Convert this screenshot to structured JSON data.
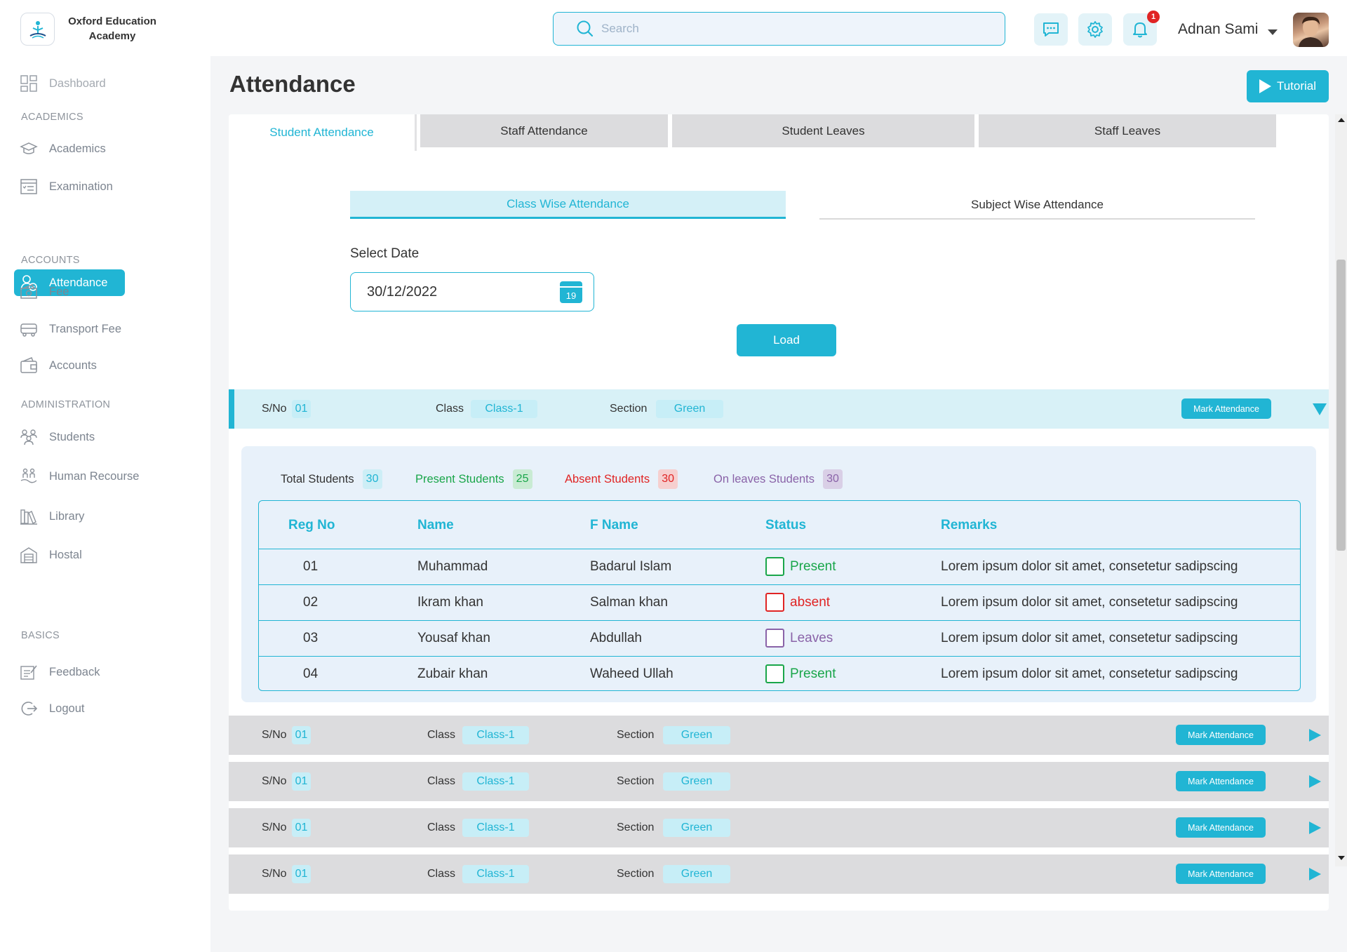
{
  "brand": {
    "line1": "Oxford Education",
    "line2": "Academy"
  },
  "search": {
    "placeholder": "Search"
  },
  "header": {
    "notification_count": "1",
    "user_name": "Adnan Sami"
  },
  "sidebar": {
    "dashboard": "Dashboard",
    "head_academics": "ACADEMICS",
    "academics": "Academics",
    "examination": "Examination",
    "attendance": "Attendance",
    "head_accounts": "ACCOUNTS",
    "fee": "Fee",
    "transport_fee": "Transport Fee",
    "accounts": "Accounts",
    "head_administration": "ADMINISTRATION",
    "students": "Students",
    "human_resource": "Human Recourse",
    "library": "Library",
    "hostal": "Hostal",
    "head_basics": "BASICS",
    "feedback": "Feedback",
    "logout": "Logout"
  },
  "page": {
    "title": "Attendance",
    "tutorial_label": "Tutorial"
  },
  "tabs": [
    "Student Attendance",
    "Staff Attendance",
    "Student Leaves",
    "Staff Leaves"
  ],
  "subtabs": [
    "Class Wise Attendance",
    "Subject Wise Attendance"
  ],
  "date": {
    "label": "Select Date",
    "value": "30/12/2022",
    "calendar_day": "19"
  },
  "load_label": "Load",
  "row_labels": {
    "sno": "S/No",
    "class": "Class",
    "section": "Section",
    "mark": "Mark Attendance"
  },
  "class_rows": [
    {
      "sno": "01",
      "class": "Class-1",
      "section": "Green",
      "expanded": true
    },
    {
      "sno": "01",
      "class": "Class-1",
      "section": "Green",
      "expanded": false
    },
    {
      "sno": "01",
      "class": "Class-1",
      "section": "Green",
      "expanded": false
    },
    {
      "sno": "01",
      "class": "Class-1",
      "section": "Green",
      "expanded": false
    },
    {
      "sno": "01",
      "class": "Class-1",
      "section": "Green",
      "expanded": false
    }
  ],
  "stats": {
    "total_label": "Total Students",
    "total": "30",
    "present_label": "Present Students",
    "present": "25",
    "absent_label": "Absent Students",
    "absent": "30",
    "leaves_label": "On leaves Students",
    "leaves": "30"
  },
  "table": {
    "headers": [
      "Reg No",
      "Name",
      "F Name",
      "Status",
      "Remarks"
    ],
    "rows": [
      {
        "reg": "01",
        "name": "Muhammad",
        "fname": "Badarul Islam",
        "status": "Present",
        "remarks": "Lorem ipsum dolor sit amet, consetetur sadipscing"
      },
      {
        "reg": "02",
        "name": "Ikram khan",
        "fname": "Salman khan",
        "status": "absent",
        "remarks": "Lorem ipsum dolor sit amet, consetetur sadipscing"
      },
      {
        "reg": "03",
        "name": "Yousaf khan",
        "fname": "Abdullah",
        "status": "Leaves",
        "remarks": "Lorem ipsum dolor sit amet, consetetur sadipscing"
      },
      {
        "reg": "04",
        "name": "Zubair khan",
        "fname": "Waheed Ullah",
        "status": "Present",
        "remarks": "Lorem ipsum dolor sit amet, consetetur sadipscing"
      }
    ]
  },
  "colors": {
    "accent": "#21b5d4",
    "present": "#1aa64a",
    "absent": "#e02424",
    "leaves": "#8a63a8"
  }
}
